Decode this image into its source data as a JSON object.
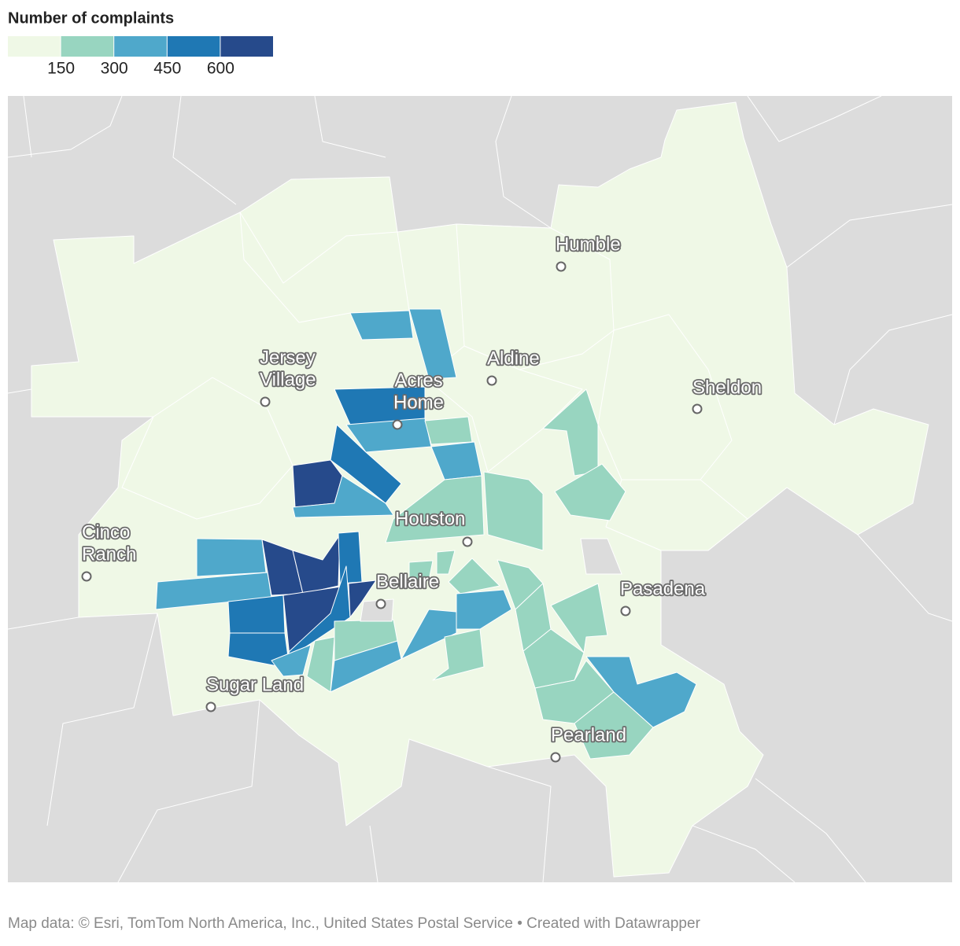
{
  "legend": {
    "title": "Number of complaints",
    "colors": [
      "#eff8e6",
      "#98d5c0",
      "#4fa8cb",
      "#1f78b4",
      "#264a8b"
    ],
    "ticks": [
      150,
      300,
      450,
      600
    ]
  },
  "places": [
    {
      "lines": [
        "Humble"
      ]
    },
    {
      "lines": [
        "Jersey",
        "Village"
      ]
    },
    {
      "lines": [
        "Aldine"
      ]
    },
    {
      "lines": [
        "Acres",
        "Home"
      ]
    },
    {
      "lines": [
        "Sheldon"
      ]
    },
    {
      "lines": [
        "Cinco",
        "Ranch"
      ]
    },
    {
      "lines": [
        "Houston"
      ]
    },
    {
      "lines": [
        "Bellaire"
      ]
    },
    {
      "lines": [
        "Pasadena"
      ]
    },
    {
      "lines": [
        "Sugar Land"
      ]
    },
    {
      "lines": [
        "Pearland"
      ]
    }
  ],
  "footer": {
    "source": "Map data: © Esri, TomTom North America, Inc., United States Postal Service",
    "credit": " • Created with Datawrapper"
  }
}
